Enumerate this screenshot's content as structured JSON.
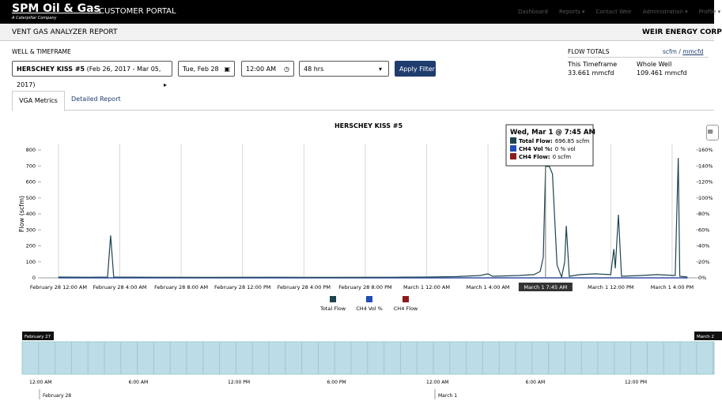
{
  "nav": {
    "brand": "SPM Oil & Gas",
    "brand_sub": "A Caterpillar Company",
    "portal": "CUSTOMER PORTAL",
    "links": [
      "Dashboard",
      "Reports ▾",
      "Contact Weir",
      "Administration ▾",
      "Profile ▾"
    ]
  },
  "header": {
    "title": "VENT GAS ANALYZER REPORT",
    "company": "WEIR ENERGY CORP"
  },
  "filter": {
    "label": "WELL & TIMEFRAME",
    "well": "HERSCHEY KISS #5",
    "well_range": "(Feb 26, 2017 - Mar 05, 2017)",
    "date": "Tue, Feb 28",
    "time": "12:00 AM",
    "duration": "48 hrs",
    "button": "Apply Filter"
  },
  "totals": {
    "label": "FLOW TOTALS",
    "unit_a": "scfm",
    "sep": "/",
    "unit_b": "mmcfd",
    "this_label": "This Timeframe",
    "this_value": "33.661 mmcfd",
    "whole_label": "Whole Well",
    "whole_value": "109.461 mmcfd"
  },
  "tabs": [
    "VGA Metrics",
    "Detailed Report"
  ],
  "chart_data": {
    "type": "line",
    "title": "HERSCHEY KISS #5",
    "y_label": "Flow (scfm)",
    "x": [
      0,
      2,
      3.2,
      3.4,
      3.6,
      6,
      10,
      14,
      18,
      22,
      24,
      26,
      27.5,
      28,
      28.3,
      29,
      30,
      31,
      31.4,
      31.6,
      31.75,
      32,
      32.2,
      32.5,
      32.8,
      33.0,
      33.1,
      33.3,
      34,
      35,
      36,
      36.2,
      36.3,
      36.5,
      36.7,
      38,
      39,
      40.2,
      40.4,
      40.5,
      41
    ],
    "series": [
      {
        "name": "Total Flow",
        "color": "#1d4450",
        "values": [
          5,
          4,
          5,
          265,
          5,
          4,
          3,
          4,
          3,
          4,
          5,
          8,
          15,
          25,
          10,
          12,
          15,
          20,
          40,
          130,
          696.85,
          697,
          650,
          80,
          5,
          100,
          325,
          10,
          20,
          25,
          20,
          180,
          60,
          395,
          10,
          15,
          20,
          15,
          750,
          10,
          5
        ]
      },
      {
        "name": "CH4 Vol %",
        "color": "#1f4fb4",
        "axis": "y2",
        "values": [
          0,
          0,
          0,
          0,
          0,
          0,
          0,
          0,
          0,
          0,
          0,
          0,
          0,
          0,
          0,
          0,
          0,
          0,
          0,
          0,
          0,
          0,
          0,
          0,
          0,
          0,
          0,
          0,
          0,
          0,
          0,
          0,
          0,
          0,
          0,
          0,
          0,
          0,
          0,
          0,
          0
        ]
      },
      {
        "name": "CH4 Flow",
        "color": "#8b1c1c",
        "values": [
          0,
          0,
          0,
          0,
          0,
          0,
          0,
          0,
          0,
          0,
          0,
          0,
          0,
          0,
          0,
          0,
          0,
          0,
          0,
          0,
          0,
          0,
          0,
          0,
          0,
          0,
          0,
          0,
          0,
          0,
          0,
          0,
          0,
          0,
          0,
          0,
          0,
          0,
          0,
          0,
          0
        ]
      }
    ],
    "xlim": [
      -1.13,
      41.55
    ],
    "xticks": [
      {
        "value": 0,
        "label": "February 28 12:00 AM"
      },
      {
        "value": 4,
        "label": "February 28 4:00 AM"
      },
      {
        "value": 8,
        "label": "February 28 8:00 AM"
      },
      {
        "value": 12,
        "label": "February 28 12:00 PM"
      },
      {
        "value": 16,
        "label": "February 28 4:00 PM"
      },
      {
        "value": 20,
        "label": "February 28 8:00 PM"
      },
      {
        "value": 24,
        "label": "March 1 12:00 AM"
      },
      {
        "value": 28,
        "label": "March 1 4:00 AM"
      },
      {
        "value": 36,
        "label": "March 1 12:00 PM"
      },
      {
        "value": 40,
        "label": "March 1 4:00 PM"
      }
    ],
    "ylim": [
      0,
      800
    ],
    "yticks": [
      0,
      100,
      200,
      300,
      400,
      500,
      600,
      700,
      800
    ],
    "y2lim": [
      0,
      160
    ],
    "y2ticks": [
      {
        "value": 0,
        "label": "0%"
      },
      {
        "value": 20,
        "label": "20%"
      },
      {
        "value": 40,
        "label": "40%"
      },
      {
        "value": 60,
        "label": "60%"
      },
      {
        "value": 80,
        "label": "80%"
      },
      {
        "value": 100,
        "label": "100%"
      },
      {
        "value": 120,
        "label": "120%"
      },
      {
        "value": 140,
        "label": "140%"
      },
      {
        "value": 160,
        "label": "160%"
      }
    ],
    "tooltip": {
      "x": 31.75,
      "title": "Wed, Mar 1 @ 7:45 AM",
      "crosshair_label": "March 1 7:45 AM",
      "rows": [
        {
          "name": "Total Flow:",
          "value": "696.85 scfm"
        },
        {
          "name": "CH4 Vol %:",
          "value": "0 % vol"
        },
        {
          "name": "CH4 Flow:",
          "value": "0 scfm"
        }
      ]
    }
  },
  "navigator": {
    "start": "February 27",
    "end": "March 2",
    "times": [
      "12:00 AM",
      "6:00 AM",
      "12:00 PM",
      "6:00 PM",
      "12:00 AM",
      "6:00 AM",
      "12:00 PM"
    ],
    "days": [
      "February 28",
      "March 1"
    ]
  }
}
